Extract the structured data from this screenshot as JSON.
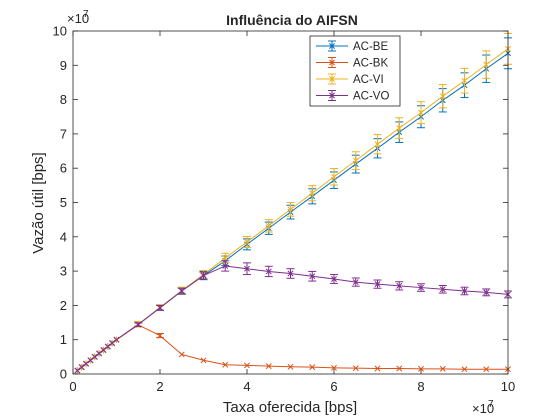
{
  "chart_data": {
    "type": "line",
    "title": "Influência do AIFSN",
    "xlabel": "Taxa oferecida [bps]",
    "ylabel": "Vazão útil [bps]",
    "x_exponent_label": "×10",
    "x_exponent_power": "7",
    "y_exponent_label": "×10",
    "y_exponent_power": "7",
    "xlim": [
      0,
      10
    ],
    "ylim": [
      0,
      10
    ],
    "xticks": [
      0,
      2,
      4,
      6,
      8,
      10
    ],
    "yticks": [
      0,
      1,
      2,
      3,
      4,
      5,
      6,
      7,
      8,
      9,
      10
    ],
    "grid": false,
    "legend_position": "top-right",
    "x": [
      0.1,
      0.2,
      0.3,
      0.4,
      0.5,
      0.6,
      0.7,
      0.8,
      0.9,
      1.0,
      1.5,
      2.0,
      2.5,
      3.0,
      3.5,
      4.0,
      4.5,
      5.0,
      5.5,
      6.0,
      6.5,
      7.0,
      7.5,
      8.0,
      8.5,
      9.0,
      9.5,
      10.0
    ],
    "series": [
      {
        "name": "AC-BE",
        "color": "#0072BD",
        "marker": "asterisk",
        "values": [
          0.1,
          0.2,
          0.3,
          0.4,
          0.5,
          0.6,
          0.7,
          0.8,
          0.9,
          1.0,
          1.45,
          1.93,
          2.42,
          2.87,
          3.3,
          3.78,
          4.25,
          4.72,
          5.18,
          5.65,
          6.12,
          6.58,
          7.05,
          7.5,
          7.98,
          8.42,
          8.9,
          9.35
        ],
        "errors": [
          0.02,
          0.02,
          0.02,
          0.02,
          0.02,
          0.02,
          0.02,
          0.02,
          0.02,
          0.02,
          0.08,
          0.08,
          0.1,
          0.12,
          0.14,
          0.16,
          0.18,
          0.2,
          0.22,
          0.24,
          0.26,
          0.28,
          0.3,
          0.32,
          0.34,
          0.36,
          0.4,
          0.45
        ]
      },
      {
        "name": "AC-BK",
        "color": "#D95319",
        "marker": "x",
        "values": [
          0.1,
          0.2,
          0.3,
          0.4,
          0.5,
          0.6,
          0.7,
          0.8,
          0.9,
          1.0,
          1.43,
          1.12,
          0.57,
          0.4,
          0.27,
          0.25,
          0.23,
          0.21,
          0.2,
          0.18,
          0.17,
          0.16,
          0.16,
          0.15,
          0.15,
          0.14,
          0.14,
          0.14
        ],
        "errors": [
          0.02,
          0.02,
          0.02,
          0.02,
          0.02,
          0.02,
          0.02,
          0.02,
          0.02,
          0.02,
          0.06,
          0.06,
          0.03,
          0.02,
          0.02,
          0.02,
          0.02,
          0.02,
          0.02,
          0.02,
          0.02,
          0.02,
          0.02,
          0.02,
          0.02,
          0.02,
          0.02,
          0.02
        ]
      },
      {
        "name": "AC-VI",
        "color": "#EDB120",
        "marker": "asterisk",
        "values": [
          0.1,
          0.2,
          0.3,
          0.4,
          0.5,
          0.6,
          0.7,
          0.8,
          0.9,
          1.0,
          1.45,
          1.94,
          2.43,
          2.9,
          3.38,
          3.85,
          4.32,
          4.8,
          5.27,
          5.75,
          6.22,
          6.7,
          7.17,
          7.62,
          8.1,
          8.55,
          9.02,
          9.48
        ],
        "errors": [
          0.02,
          0.02,
          0.02,
          0.02,
          0.02,
          0.02,
          0.02,
          0.02,
          0.02,
          0.02,
          0.08,
          0.08,
          0.1,
          0.12,
          0.14,
          0.16,
          0.18,
          0.2,
          0.22,
          0.24,
          0.26,
          0.28,
          0.3,
          0.32,
          0.34,
          0.36,
          0.4,
          0.45
        ]
      },
      {
        "name": "AC-VO",
        "color": "#7E2F8E",
        "marker": "x",
        "values": [
          0.1,
          0.2,
          0.3,
          0.4,
          0.5,
          0.6,
          0.7,
          0.8,
          0.9,
          1.0,
          1.44,
          1.93,
          2.42,
          2.87,
          3.15,
          3.07,
          2.99,
          2.93,
          2.85,
          2.77,
          2.68,
          2.62,
          2.57,
          2.52,
          2.47,
          2.42,
          2.38,
          2.32
        ],
        "errors": [
          0.02,
          0.02,
          0.02,
          0.02,
          0.02,
          0.02,
          0.02,
          0.02,
          0.02,
          0.02,
          0.05,
          0.07,
          0.08,
          0.1,
          0.15,
          0.17,
          0.15,
          0.14,
          0.14,
          0.13,
          0.12,
          0.12,
          0.12,
          0.11,
          0.11,
          0.11,
          0.1,
          0.1
        ]
      }
    ]
  }
}
